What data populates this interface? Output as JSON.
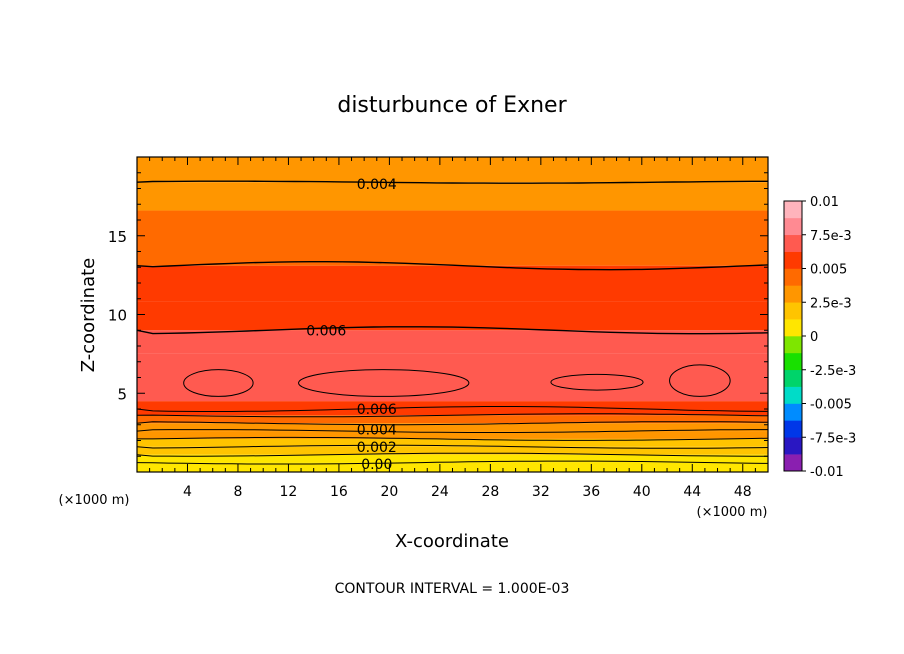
{
  "chart_data": {
    "type": "heatmap",
    "title": "disturbunce of Exner",
    "xlabel": "X-coordinate",
    "ylabel": "Z-coordinate",
    "x_unit_label": "(×1000 m)",
    "y_unit_label": "(×1000 m)",
    "xlim": [
      0,
      50
    ],
    "ylim": [
      0,
      20
    ],
    "xticks": [
      4,
      8,
      12,
      16,
      20,
      24,
      28,
      32,
      36,
      40,
      44,
      48
    ],
    "yticks": [
      5,
      10,
      15
    ],
    "footer": "CONTOUR INTERVAL = 1.000E-03",
    "colorbar": {
      "min": -0.01,
      "max": 0.01,
      "step": 0.00125,
      "tick_values": [
        0.01,
        0.0075,
        0.005,
        0.0025,
        0,
        -0.0025,
        -0.005,
        -0.0075,
        -0.01
      ],
      "tick_labels": [
        "0.01",
        "7.5e-3",
        "0.005",
        "2.5e-3",
        "0",
        "-2.5e-3",
        "-0.005",
        "-7.5e-3",
        "-0.01"
      ],
      "colors": [
        "#8a1fb0",
        "#2a17c2",
        "#0037e8",
        "#008cff",
        "#00dcc8",
        "#00d46a",
        "#18e000",
        "#7ee600",
        "#ffe600",
        "#ffc400",
        "#ff9600",
        "#ff6a00",
        "#ff3a00",
        "#ff5a50",
        "#ff8a92",
        "#ffb4bc"
      ]
    },
    "contour_labels": [
      {
        "text": "0.004",
        "x": 19,
        "z": 18.3
      },
      {
        "text": "0.006",
        "x": 15,
        "z": 9.0
      },
      {
        "text": "0.006",
        "x": 19,
        "z": 4.0
      },
      {
        "text": "0.004",
        "x": 19,
        "z": 2.7
      },
      {
        "text": "0.002",
        "x": 19,
        "z": 1.6
      },
      {
        "text": "0.00",
        "x": 19,
        "z": 0.5
      }
    ],
    "levels": {
      "min": 0,
      "max": 0.007,
      "interval": 0.001,
      "bands": [
        {
          "z": [
            0.0,
            0.6
          ],
          "value": 0.0003
        },
        {
          "z": [
            0.6,
            1.1
          ],
          "value": 0.0008
        },
        {
          "z": [
            1.1,
            1.6
          ],
          "value": 0.0015
        },
        {
          "z": [
            1.6,
            2.1
          ],
          "value": 0.0022
        },
        {
          "z": [
            2.1,
            2.6
          ],
          "value": 0.003
        },
        {
          "z": [
            2.6,
            3.1
          ],
          "value": 0.0037
        },
        {
          "z": [
            3.1,
            3.6
          ],
          "value": 0.0045
        },
        {
          "z": [
            3.6,
            4.0
          ],
          "value": 0.0055
        },
        {
          "z": [
            4.0,
            4.5
          ],
          "value": 0.0062
        },
        {
          "z": [
            4.5,
            7.5
          ],
          "value": 0.0068
        },
        {
          "z": [
            7.5,
            9.0
          ],
          "value": 0.0065
        },
        {
          "z": [
            9.0,
            10.8
          ],
          "value": 0.0058
        },
        {
          "z": [
            10.8,
            13.1
          ],
          "value": 0.0052
        },
        {
          "z": [
            13.1,
            16.6
          ],
          "value": 0.0045
        },
        {
          "z": [
            16.6,
            18.4
          ],
          "value": 0.0036
        },
        {
          "z": [
            18.4,
            20.0
          ],
          "value": 0.003
        }
      ],
      "maxima_cells": [
        {
          "x": [
            3.7,
            9.2
          ],
          "z": [
            4.8,
            6.5
          ],
          "value": 0.0072
        },
        {
          "x": [
            12.8,
            26.3
          ],
          "z": [
            4.8,
            6.5
          ],
          "value": 0.0072
        },
        {
          "x": [
            32.8,
            40.1
          ],
          "z": [
            5.2,
            6.2
          ],
          "value": 0.0072
        },
        {
          "x": [
            42.2,
            47.0
          ],
          "z": [
            4.8,
            6.8
          ],
          "value": 0.0072
        }
      ]
    }
  }
}
